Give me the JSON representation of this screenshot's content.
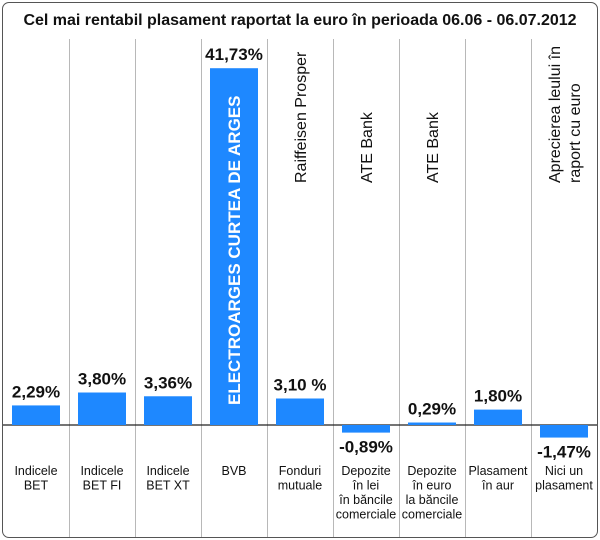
{
  "chart_data": {
    "type": "bar",
    "title": "Cel mai rentabil plasament raportat la euro în perioada 06.06 - 06.07.2012",
    "xlabel": "",
    "ylabel": "",
    "ylim": [
      -3.5,
      44
    ],
    "gridlines": false,
    "bar_color": "#1e88ff",
    "categories": [
      [
        "Indicele",
        "BET"
      ],
      [
        "Indicele",
        "BET FI"
      ],
      [
        "Indicele",
        "BET XT"
      ],
      [
        "BVB"
      ],
      [
        "Fonduri",
        "mutuale"
      ],
      [
        "Depozite",
        "în lei",
        "în băncile",
        "comerciale"
      ],
      [
        "Depozite",
        "în euro",
        "la băncile",
        "comerciale"
      ],
      [
        "Plasament",
        "în aur"
      ],
      [
        "Nici un",
        "plasament"
      ]
    ],
    "values": [
      2.29,
      3.8,
      3.36,
      41.73,
      3.1,
      -0.89,
      0.29,
      1.8,
      -1.47
    ],
    "value_labels": [
      "2,29%",
      "3,80%",
      "3,36%",
      "41,73%",
      "3,10 %",
      "-0,89%",
      "0,29%",
      "1,80%",
      "-1,47%"
    ],
    "vertical_labels": [
      [],
      [],
      [],
      [
        "ELECTROARGES CURTEA DE ARGES"
      ],
      [
        "Raiffeisen Prosper"
      ],
      [
        "ATE Bank"
      ],
      [
        "ATE Bank"
      ],
      [],
      [
        "Aprecierea leului în",
        "raport cu euro"
      ]
    ]
  }
}
